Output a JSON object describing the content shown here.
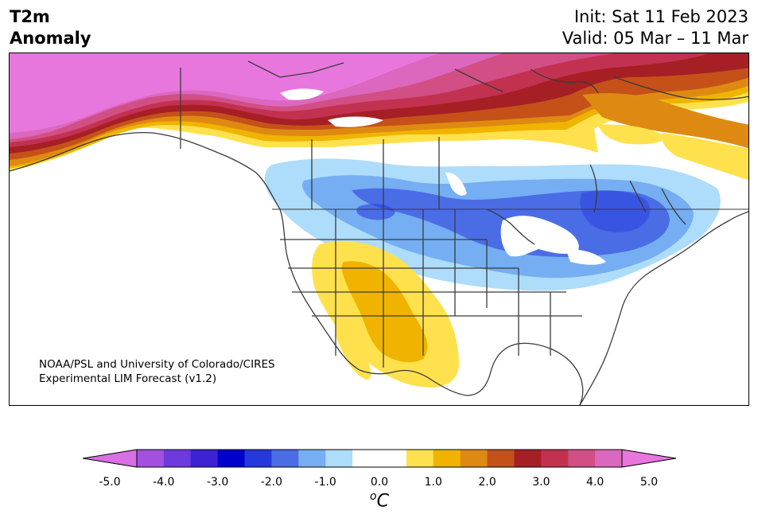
{
  "title": {
    "line1": "T2m",
    "line2": "Anomaly"
  },
  "init": {
    "line1": "Init: Sat 11 Feb 2023",
    "line2": "Valid: 05 Mar – 11 Mar"
  },
  "credit": {
    "line1": "NOAA/PSL and University of Colorado/CIRES",
    "line2": "Experimental LIM Forecast (v1.2)"
  },
  "colorbar": {
    "colors": [
      "#d86fe3",
      "#a350e0",
      "#6c3adf",
      "#3d22d4",
      "#0000cc",
      "#2438dc",
      "#4a6de6",
      "#75aef2",
      "#aedcfb",
      "#ffffff",
      "#ffffff",
      "#ffe14d",
      "#f0b400",
      "#de8a12",
      "#c55118",
      "#a61f24",
      "#c33150",
      "#d14f84",
      "#dc67be",
      "#e877dd"
    ],
    "ticks": [
      "-5.0",
      "-4.0",
      "-3.0",
      "-2.0",
      "-1.0",
      "0.0",
      "1.0",
      "2.0",
      "3.0",
      "4.0",
      "5.0"
    ],
    "unit_symbol": "o",
    "unit_letter": "C"
  },
  "icons": [
    "map-of-north-america-icon"
  ]
}
